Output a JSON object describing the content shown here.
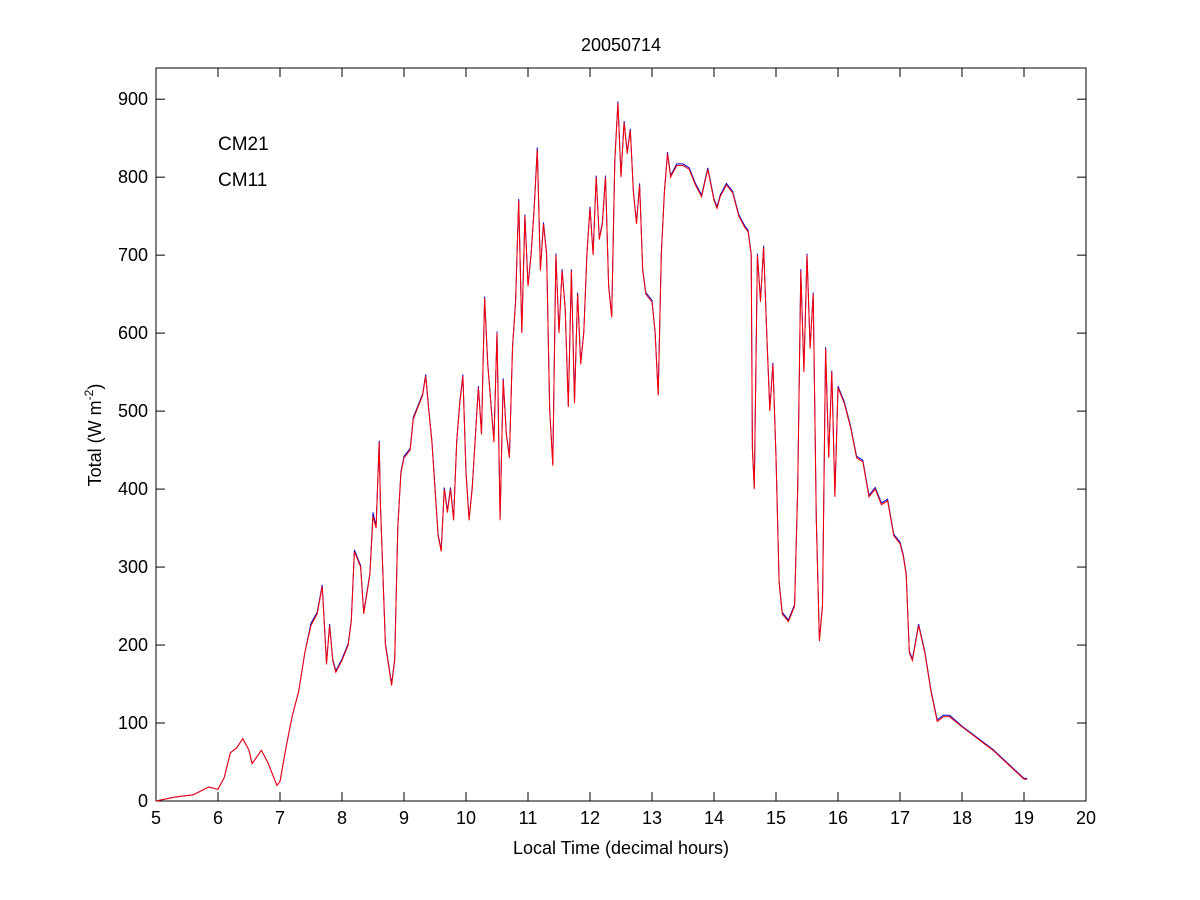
{
  "chart_data": {
    "type": "line",
    "title": "20050714",
    "xlabel": "Local Time (decimal hours)",
    "ylabel": "Total (W m^-2)",
    "ylabel_parts": {
      "main": "Total (W m",
      "sup": "-2",
      "end": ")"
    },
    "xlim": [
      5,
      20
    ],
    "ylim": [
      0,
      940
    ],
    "xticks": [
      5,
      6,
      7,
      8,
      9,
      10,
      11,
      12,
      13,
      14,
      15,
      16,
      17,
      18,
      19,
      20
    ],
    "yticks": [
      0,
      100,
      200,
      300,
      400,
      500,
      600,
      700,
      800,
      900
    ],
    "grid": false,
    "legend_placement": "top-left",
    "x": [
      5.0,
      5.3,
      5.6,
      5.85,
      6.0,
      6.1,
      6.2,
      6.3,
      6.4,
      6.5,
      6.55,
      6.7,
      6.8,
      6.95,
      7.0,
      7.1,
      7.2,
      7.3,
      7.4,
      7.5,
      7.6,
      7.68,
      7.72,
      7.75,
      7.8,
      7.85,
      7.9,
      8.0,
      8.1,
      8.15,
      8.2,
      8.3,
      8.35,
      8.45,
      8.5,
      8.55,
      8.6,
      8.62,
      8.7,
      8.8,
      8.85,
      8.9,
      8.95,
      9.0,
      9.1,
      9.15,
      9.2,
      9.3,
      9.35,
      9.4,
      9.45,
      9.5,
      9.55,
      9.6,
      9.65,
      9.7,
      9.75,
      9.8,
      9.85,
      9.9,
      9.95,
      10.0,
      10.05,
      10.1,
      10.2,
      10.25,
      10.3,
      10.35,
      10.45,
      10.5,
      10.55,
      10.6,
      10.65,
      10.7,
      10.75,
      10.8,
      10.85,
      10.9,
      10.95,
      11.0,
      11.05,
      11.1,
      11.15,
      11.2,
      11.25,
      11.3,
      11.35,
      11.4,
      11.45,
      11.5,
      11.55,
      11.6,
      11.65,
      11.7,
      11.75,
      11.8,
      11.85,
      11.9,
      11.95,
      12.0,
      12.05,
      12.1,
      12.15,
      12.2,
      12.25,
      12.3,
      12.35,
      12.4,
      12.45,
      12.5,
      12.55,
      12.6,
      12.65,
      12.7,
      12.75,
      12.8,
      12.85,
      12.9,
      13.0,
      13.05,
      13.1,
      13.15,
      13.2,
      13.25,
      13.3,
      13.4,
      13.5,
      13.6,
      13.7,
      13.8,
      13.9,
      14.0,
      14.05,
      14.1,
      14.2,
      14.3,
      14.4,
      14.5,
      14.55,
      14.6,
      14.62,
      14.65,
      14.7,
      14.75,
      14.8,
      14.85,
      14.9,
      14.95,
      15.0,
      15.05,
      15.1,
      15.2,
      15.3,
      15.35,
      15.4,
      15.45,
      15.5,
      15.55,
      15.6,
      15.65,
      15.7,
      15.75,
      15.8,
      15.85,
      15.9,
      15.95,
      16.0,
      16.1,
      16.2,
      16.3,
      16.4,
      16.5,
      16.6,
      16.7,
      16.8,
      16.9,
      17.0,
      17.05,
      17.1,
      17.15,
      17.2,
      17.3,
      17.4,
      17.5,
      17.6,
      17.7,
      17.8,
      18.0,
      18.5,
      19.0,
      19.05
    ],
    "series": [
      {
        "name": "CM21",
        "color": "#0000cc",
        "values": [
          0,
          5,
          8,
          18,
          15,
          30,
          62,
          68,
          80,
          65,
          48,
          65,
          50,
          20,
          25,
          70,
          110,
          140,
          190,
          228,
          242,
          277,
          222,
          177,
          227,
          182,
          167,
          182,
          202,
          232,
          322,
          302,
          242,
          292,
          370,
          352,
          462,
          382,
          202,
          150,
          182,
          352,
          422,
          442,
          452,
          492,
          502,
          522,
          547,
          502,
          462,
          402,
          342,
          322,
          402,
          372,
          402,
          362,
          462,
          512,
          547,
          422,
          362,
          402,
          532,
          472,
          647,
          562,
          462,
          602,
          362,
          542,
          472,
          442,
          582,
          642,
          772,
          602,
          752,
          662,
          702,
          762,
          838,
          682,
          742,
          702,
          502,
          432,
          702,
          602,
          682,
          632,
          507,
          682,
          512,
          652,
          562,
          602,
          702,
          762,
          702,
          802,
          722,
          742,
          802,
          662,
          622,
          822,
          897,
          802,
          872,
          832,
          862,
          782,
          742,
          792,
          682,
          652,
          642,
          602,
          522,
          702,
          782,
          832,
          802,
          817,
          817,
          812,
          792,
          777,
          812,
          772,
          762,
          777,
          792,
          782,
          752,
          737,
          732,
          702,
          452,
          402,
          702,
          642,
          712,
          602,
          502,
          562,
          442,
          282,
          242,
          232,
          252,
          402,
          682,
          552,
          702,
          582,
          652,
          362,
          207,
          252,
          582,
          442,
          552,
          392,
          532,
          512,
          482,
          442,
          437,
          392,
          402,
          382,
          387,
          342,
          332,
          317,
          292,
          192,
          182,
          227,
          192,
          142,
          104,
          110,
          110,
          96,
          66,
          29,
          29
        ]
      },
      {
        "name": "CM11",
        "color": "#ff0000",
        "values": [
          0,
          5,
          8,
          18,
          15,
          30,
          62,
          68,
          80,
          65,
          48,
          65,
          50,
          20,
          25,
          70,
          110,
          140,
          190,
          225,
          240,
          275,
          220,
          175,
          225,
          180,
          165,
          180,
          200,
          230,
          320,
          300,
          240,
          290,
          365,
          350,
          460,
          380,
          200,
          148,
          180,
          350,
          420,
          440,
          450,
          490,
          500,
          520,
          545,
          500,
          460,
          400,
          340,
          320,
          400,
          370,
          400,
          360,
          460,
          510,
          545,
          420,
          360,
          400,
          530,
          470,
          645,
          560,
          460,
          600,
          360,
          540,
          470,
          440,
          580,
          640,
          770,
          600,
          750,
          660,
          700,
          760,
          835,
          680,
          740,
          700,
          500,
          430,
          700,
          600,
          680,
          630,
          505,
          680,
          510,
          650,
          560,
          600,
          700,
          760,
          700,
          800,
          720,
          740,
          800,
          660,
          620,
          820,
          895,
          800,
          870,
          830,
          860,
          780,
          740,
          790,
          680,
          650,
          640,
          600,
          520,
          700,
          780,
          830,
          800,
          815,
          815,
          810,
          790,
          775,
          810,
          770,
          760,
          775,
          790,
          780,
          750,
          735,
          730,
          700,
          450,
          400,
          700,
          640,
          710,
          600,
          500,
          560,
          440,
          280,
          240,
          230,
          250,
          400,
          680,
          550,
          700,
          580,
          650,
          360,
          205,
          250,
          580,
          440,
          550,
          390,
          530,
          510,
          480,
          440,
          435,
          390,
          400,
          380,
          385,
          340,
          330,
          315,
          290,
          190,
          180,
          225,
          190,
          140,
          102,
          108,
          108,
          95,
          65,
          28,
          28
        ]
      }
    ]
  }
}
